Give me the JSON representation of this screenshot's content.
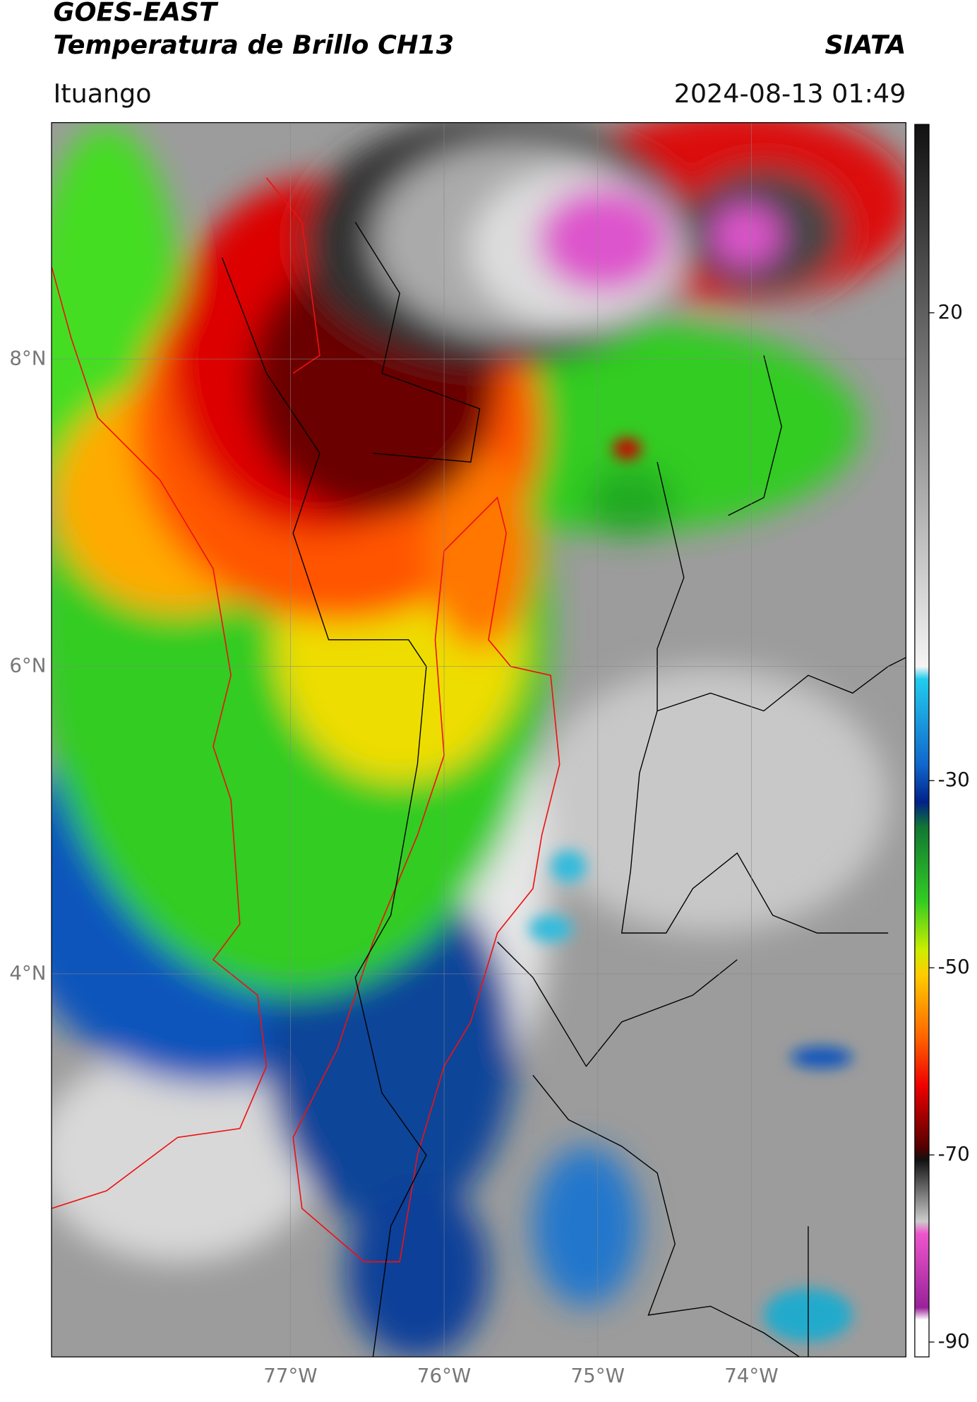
{
  "header": {
    "satellite": "GOES-EAST",
    "product": "Temperatura de Brillo CH13",
    "agency": "SIATA",
    "location": "Ituango",
    "datetime": "2024-08-13 01:49"
  },
  "map": {
    "lat_ticks": [
      {
        "value": 8,
        "label": "8°N"
      },
      {
        "value": 6,
        "label": "6°N"
      },
      {
        "value": 4,
        "label": "4°N"
      }
    ],
    "lon_ticks": [
      {
        "value": -77,
        "label": "77°W"
      },
      {
        "value": -76,
        "label": "76°W"
      },
      {
        "value": -75,
        "label": "75°W"
      },
      {
        "value": -74,
        "label": "74°W"
      }
    ],
    "colorbar_ticks": [
      20,
      -30,
      -50,
      -70,
      -90
    ]
  }
}
